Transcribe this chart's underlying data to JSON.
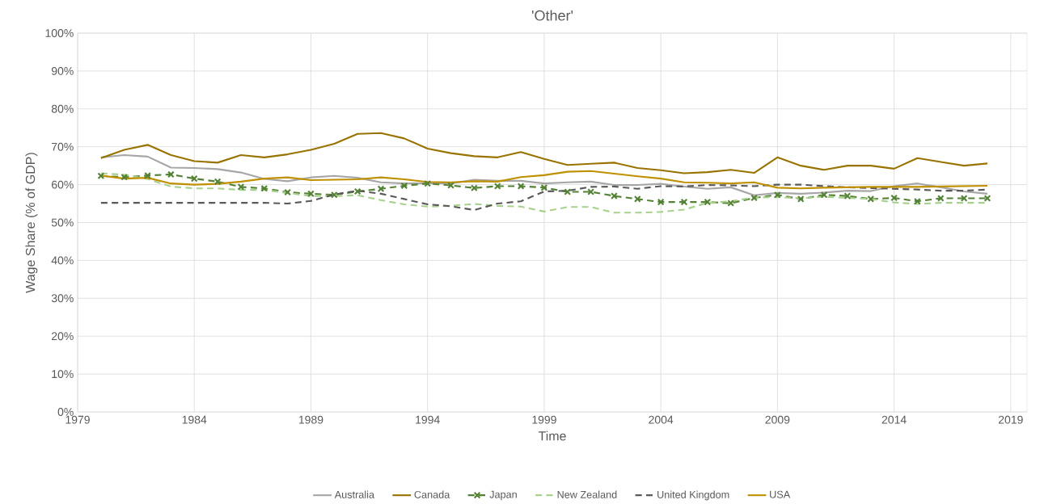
{
  "chart_data": {
    "type": "line",
    "title": "'Other'",
    "xlabel": "Time",
    "ylabel": "Wage Share (% of GDP)",
    "x": [
      1980,
      1981,
      1982,
      1983,
      1984,
      1985,
      1986,
      1987,
      1988,
      1989,
      1990,
      1991,
      1992,
      1993,
      1994,
      1995,
      1996,
      1997,
      1998,
      1999,
      2000,
      2001,
      2002,
      2003,
      2004,
      2005,
      2006,
      2007,
      2008,
      2009,
      2010,
      2011,
      2012,
      2013,
      2014,
      2015,
      2016,
      2017,
      2018
    ],
    "series": [
      {
        "name": "Australia",
        "color": "#a6a6a6",
        "line_style": "solid",
        "marker": "none",
        "values": [
          67.2,
          67.8,
          67.4,
          64.5,
          64.4,
          64.1,
          63.2,
          61.5,
          60.9,
          61.9,
          62.3,
          61.8,
          60.6,
          60.3,
          60.4,
          60.3,
          61.3,
          61.0,
          61.0,
          60.3,
          60.6,
          60.8,
          59.9,
          59.9,
          60.2,
          59.5,
          58.9,
          59.3,
          57.2,
          57.8,
          57.6,
          57.9,
          58.4,
          58.3,
          59.6,
          60.3,
          59.3,
          58.2,
          57.6
        ]
      },
      {
        "name": "Canada",
        "color": "#997300",
        "line_style": "solid",
        "marker": "none",
        "values": [
          67.0,
          69.2,
          70.5,
          67.8,
          66.2,
          65.8,
          67.8,
          67.2,
          68.0,
          69.2,
          70.8,
          73.4,
          73.6,
          72.2,
          69.5,
          68.3,
          67.5,
          67.2,
          68.6,
          66.8,
          65.2,
          65.5,
          65.8,
          64.4,
          63.8,
          63.0,
          63.3,
          63.9,
          63.1,
          67.2,
          65.0,
          63.9,
          65.0,
          65.0,
          64.2,
          67.0,
          66.0,
          65.0,
          65.6
        ]
      },
      {
        "name": "Japan",
        "color": "#548235",
        "line_style": "dashed",
        "marker": "cross",
        "values": [
          62.3,
          62.0,
          62.4,
          62.7,
          61.6,
          60.8,
          59.4,
          59.0,
          58.0,
          57.6,
          57.3,
          58.2,
          58.9,
          59.7,
          60.3,
          59.8,
          59.1,
          59.6,
          59.6,
          59.2,
          58.1,
          58.1,
          57.0,
          56.2,
          55.4,
          55.4,
          55.4,
          55.1,
          56.5,
          57.3,
          56.2,
          57.3,
          57.0,
          56.2,
          56.5,
          55.6,
          56.4,
          56.4,
          56.4
        ]
      },
      {
        "name": "New Zealand",
        "color": "#a9d18e",
        "line_style": "dashed",
        "marker": "none",
        "values": [
          63.0,
          62.6,
          61.5,
          59.5,
          59.0,
          59.0,
          58.6,
          58.6,
          57.8,
          57.0,
          57.0,
          57.2,
          55.9,
          54.8,
          54.2,
          54.4,
          54.9,
          54.4,
          54.2,
          52.9,
          54.1,
          54.1,
          52.6,
          52.6,
          52.8,
          53.4,
          55.2,
          55.6,
          56.6,
          56.7,
          56.4,
          56.8,
          56.5,
          56.2,
          55.3,
          54.9,
          55.2,
          55.2,
          55.2
        ]
      },
      {
        "name": "United Kingdom",
        "color": "#595959",
        "line_style": "dashed",
        "marker": "none",
        "values": [
          55.2,
          55.2,
          55.2,
          55.2,
          55.2,
          55.2,
          55.2,
          55.2,
          55.0,
          55.7,
          57.4,
          58.4,
          57.6,
          56.2,
          54.8,
          54.3,
          53.3,
          55.0,
          55.6,
          58.2,
          58.4,
          59.4,
          59.5,
          58.9,
          59.6,
          59.5,
          59.9,
          59.8,
          59.6,
          60.0,
          60.0,
          59.6,
          59.3,
          59.1,
          58.9,
          58.7,
          58.4,
          58.4,
          58.7
        ]
      },
      {
        "name": "USA",
        "color": "#bf9000",
        "line_style": "solid",
        "marker": "none",
        "values": [
          62.4,
          61.6,
          61.8,
          60.3,
          60.0,
          60.2,
          60.8,
          61.6,
          61.9,
          61.2,
          61.3,
          61.4,
          61.9,
          61.4,
          60.7,
          60.6,
          60.9,
          60.8,
          62.0,
          62.5,
          63.4,
          63.6,
          62.9,
          62.2,
          61.6,
          60.6,
          60.5,
          60.3,
          60.6,
          59.2,
          59.0,
          59.2,
          59.3,
          59.4,
          59.4,
          59.4,
          59.5,
          59.6,
          59.7
        ]
      }
    ],
    "xlim": [
      1979,
      2019.7
    ],
    "xticks": [
      1979,
      1984,
      1989,
      1994,
      1999,
      2004,
      2009,
      2014,
      2019
    ],
    "ylim": [
      0,
      100
    ],
    "yticks": [
      {
        "value": 0,
        "label": "0%"
      },
      {
        "value": 10,
        "label": "10%"
      },
      {
        "value": 20,
        "label": "20%"
      },
      {
        "value": 30,
        "label": "30%"
      },
      {
        "value": 40,
        "label": "40%"
      },
      {
        "value": 50,
        "label": "50%"
      },
      {
        "value": 60,
        "label": "60%"
      },
      {
        "value": 70,
        "label": "70%"
      },
      {
        "value": 80,
        "label": "80%"
      },
      {
        "value": 90,
        "label": "90%"
      },
      {
        "value": 100,
        "label": "100%"
      }
    ],
    "grid": true,
    "legend": "bottom"
  }
}
